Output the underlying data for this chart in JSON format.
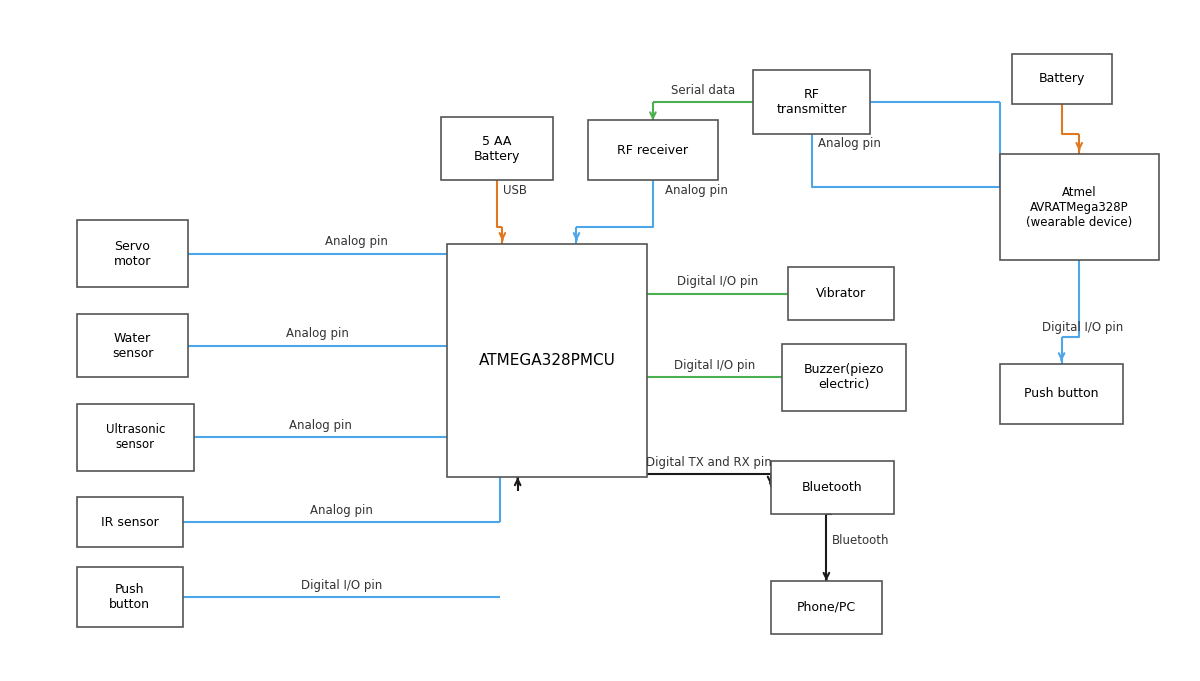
{
  "fig_width": 12.0,
  "fig_height": 6.81,
  "bg_color": "#ffffff",
  "blue": "#4da6e8",
  "green": "#4caf50",
  "orange": "#e07820",
  "black": "#1a1a1a",
  "lw": 1.5,
  "boxes": {
    "mcu": [
      0.37,
      0.295,
      0.17,
      0.35
    ],
    "servo": [
      0.055,
      0.58,
      0.095,
      0.1
    ],
    "water": [
      0.055,
      0.445,
      0.095,
      0.095
    ],
    "ultrasonic": [
      0.055,
      0.305,
      0.1,
      0.1
    ],
    "ir": [
      0.055,
      0.19,
      0.09,
      0.075
    ],
    "pushbtn_l": [
      0.055,
      0.07,
      0.09,
      0.09
    ],
    "battery5aa": [
      0.365,
      0.74,
      0.095,
      0.095
    ],
    "rf_recv": [
      0.49,
      0.74,
      0.11,
      0.09
    ],
    "rf_trans": [
      0.63,
      0.81,
      0.1,
      0.095
    ],
    "battery_r": [
      0.85,
      0.855,
      0.085,
      0.075
    ],
    "wearable": [
      0.84,
      0.62,
      0.135,
      0.16
    ],
    "vibrator": [
      0.66,
      0.53,
      0.09,
      0.08
    ],
    "buzzer": [
      0.655,
      0.395,
      0.105,
      0.1
    ],
    "bluetooth": [
      0.645,
      0.24,
      0.105,
      0.08
    ],
    "phone": [
      0.645,
      0.06,
      0.095,
      0.08
    ],
    "pushbtn_r": [
      0.84,
      0.375,
      0.105,
      0.09
    ]
  },
  "box_labels": {
    "mcu": "ATMEGA328PMCU",
    "servo": "Servo\nmotor",
    "water": "Water\nsensor",
    "ultrasonic": "Ultrasonic\nsensor",
    "ir": "IR sensor",
    "pushbtn_l": "Push\nbutton",
    "battery5aa": "5 AA\nBattery",
    "rf_recv": "RF receiver",
    "rf_trans": "RF\ntransmitter",
    "battery_r": "Battery",
    "wearable": "Atmel\nAVRATMega328P\n(wearable device)",
    "vibrator": "Vibrator",
    "buzzer": "Buzzer(piezo\nelectric)",
    "bluetooth": "Bluetooth",
    "phone": "Phone/PC",
    "pushbtn_r": "Push button"
  },
  "box_fs": {
    "mcu": 11,
    "servo": 9,
    "water": 9,
    "ultrasonic": 8.5,
    "ir": 9,
    "pushbtn_l": 9,
    "battery5aa": 9,
    "rf_recv": 9,
    "rf_trans": 9,
    "battery_r": 9,
    "wearable": 8.5,
    "vibrator": 9,
    "buzzer": 9,
    "bluetooth": 9,
    "phone": 9,
    "pushbtn_r": 9
  }
}
